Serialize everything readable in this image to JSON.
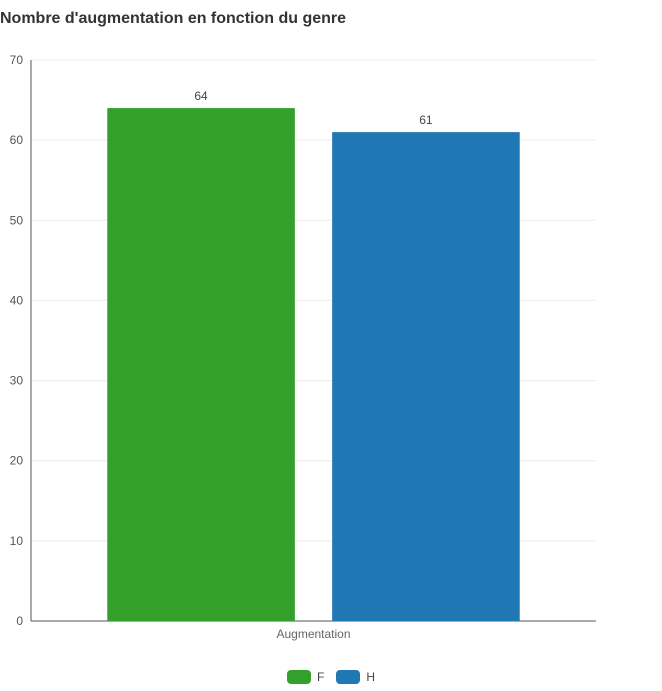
{
  "chart_data": {
    "type": "bar",
    "title": "Nombre d'augmentation en fonction du genre",
    "categories": [
      "Augmentation"
    ],
    "series": [
      {
        "name": "F",
        "values": [
          64
        ],
        "color": "#33a02c"
      },
      {
        "name": "H",
        "values": [
          61
        ],
        "color": "#1f78b4"
      }
    ],
    "ylim": [
      0,
      70
    ],
    "yticks": [
      0,
      10,
      20,
      30,
      40,
      50,
      60,
      70
    ],
    "grid": true,
    "legend_position": "bottom",
    "data_labels": true
  }
}
